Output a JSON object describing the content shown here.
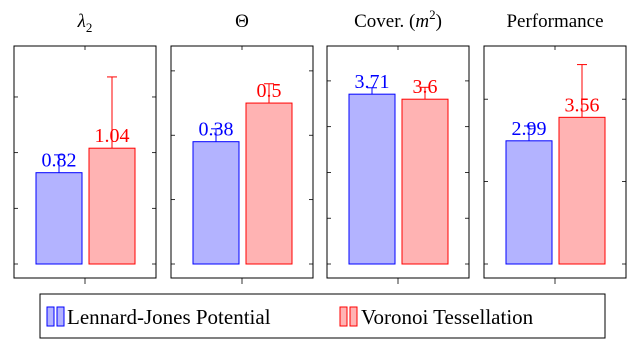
{
  "chart_data": [
    {
      "type": "bar",
      "title_parts": [
        "λ",
        "2"
      ],
      "categories": [
        "Lennard-Jones Potential",
        "Voronoi Tessellation"
      ],
      "values": [
        0.82,
        1.04
      ],
      "value_labels": [
        "0.82",
        "1.04"
      ],
      "error_upper": [
        0.98,
        1.68
      ],
      "ylim": [
        0.0,
        1.85
      ],
      "yticks": [
        0.0,
        0.5,
        1.0,
        1.5
      ],
      "grid": false
    },
    {
      "type": "bar",
      "title_parts": [
        "Θ"
      ],
      "categories": [
        "Lennard-Jones Potential",
        "Voronoi Tessellation"
      ],
      "values": [
        0.38,
        0.5
      ],
      "value_labels": [
        "0.38",
        "0.5"
      ],
      "error_upper": [
        0.42,
        0.56
      ],
      "ylim": [
        0.0,
        0.64
      ],
      "yticks": [
        0.0,
        0.2,
        0.4,
        0.6
      ],
      "grid": false
    },
    {
      "type": "bar",
      "title_parts": [
        "Cover. (",
        "m",
        "2",
        ")"
      ],
      "categories": [
        "Lennard-Jones Potential",
        "Voronoi Tessellation"
      ],
      "values": [
        3.71,
        3.6
      ],
      "value_labels": [
        "3.71",
        "3.6"
      ],
      "error_upper": [
        3.85,
        3.86
      ],
      "ylim": [
        0.0,
        4.5
      ],
      "yticks": [
        0,
        1,
        2,
        3,
        4
      ],
      "grid": false
    },
    {
      "type": "bar",
      "title_parts": [
        "Performance"
      ],
      "categories": [
        "Lennard-Jones Potential",
        "Voronoi Tessellation"
      ],
      "values": [
        2.99,
        3.56
      ],
      "value_labels": [
        "2.99",
        "3.56"
      ],
      "error_upper": [
        3.35,
        4.84
      ],
      "ylim": [
        0.0,
        5.0
      ],
      "yticks": [
        0,
        2,
        4
      ],
      "grid": false
    }
  ],
  "legend": {
    "placement": "bottom",
    "entries": [
      {
        "label": "Lennard-Jones Potential",
        "fill": "#b3b3ff",
        "stroke": "#0000ff"
      },
      {
        "label": "Voronoi Tessellation",
        "fill": "#ffb3b3",
        "stroke": "#ff0000"
      }
    ]
  },
  "colors": {
    "lj_fill": "#b3b3ff",
    "lj_stroke": "#0000ff",
    "vt_fill": "#ffb3b3",
    "vt_stroke": "#ff0000"
  }
}
